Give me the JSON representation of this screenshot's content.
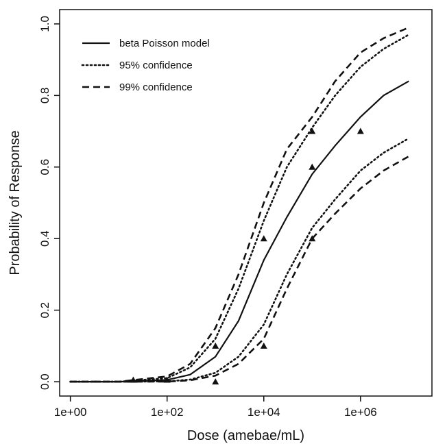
{
  "chart_data": {
    "type": "line",
    "title": "",
    "xlabel": "Dose (amebae/mL)",
    "ylabel": "Probability of Response",
    "x_scale": "log10",
    "xlim": [
      0.6,
      30000000
    ],
    "ylim": [
      -0.04,
      1.04
    ],
    "x_ticks": [
      1,
      100,
      10000,
      1000000
    ],
    "x_tick_labels": [
      "1e+00",
      "1e+02",
      "1e+04",
      "1e+06"
    ],
    "y_ticks": [
      0.0,
      0.2,
      0.4,
      0.6,
      0.8,
      1.0
    ],
    "y_tick_labels": [
      "0.0",
      "0.2",
      "0.4",
      "0.6",
      "0.8",
      "1.0"
    ],
    "grid": false,
    "legend_position": "top-left",
    "series": [
      {
        "name": "beta Poisson model",
        "style": "solid",
        "x": [
          1,
          10,
          100,
          300,
          1000,
          3000,
          10000,
          30000,
          100000,
          300000,
          1000000,
          3000000,
          10000000
        ],
        "y": [
          0.0,
          0.0,
          0.005,
          0.02,
          0.07,
          0.17,
          0.34,
          0.46,
          0.58,
          0.66,
          0.74,
          0.8,
          0.84
        ]
      },
      {
        "name": "95% confidence",
        "style": "dotted",
        "x": [
          1,
          10,
          100,
          300,
          1000,
          3000,
          10000,
          30000,
          100000,
          300000,
          1000000,
          3000000,
          10000000
        ],
        "y": [
          0.0,
          0.0,
          0.01,
          0.04,
          0.12,
          0.26,
          0.45,
          0.6,
          0.71,
          0.8,
          0.88,
          0.93,
          0.97
        ]
      },
      {
        "name": "95% confidence",
        "style": "dotted",
        "x": [
          1,
          10,
          100,
          300,
          1000,
          3000,
          10000,
          30000,
          100000,
          300000,
          1000000,
          3000000,
          10000000
        ],
        "y": [
          0.0,
          0.0,
          0.001,
          0.006,
          0.025,
          0.07,
          0.16,
          0.3,
          0.43,
          0.51,
          0.59,
          0.64,
          0.68
        ]
      },
      {
        "name": "99% confidence",
        "style": "dashed",
        "x": [
          1,
          10,
          100,
          300,
          1000,
          3000,
          10000,
          30000,
          100000,
          300000,
          1000000,
          3000000,
          10000000
        ],
        "y": [
          0.0,
          0.0,
          0.015,
          0.05,
          0.15,
          0.3,
          0.5,
          0.65,
          0.74,
          0.84,
          0.92,
          0.96,
          0.99
        ]
      },
      {
        "name": "99% confidence",
        "style": "dashed",
        "x": [
          1,
          10,
          100,
          300,
          1000,
          3000,
          10000,
          30000,
          100000,
          300000,
          1000000,
          3000000,
          10000000
        ],
        "y": [
          0.0,
          0.0,
          0.0005,
          0.004,
          0.017,
          0.05,
          0.12,
          0.26,
          0.4,
          0.47,
          0.54,
          0.59,
          0.63
        ]
      }
    ],
    "points": {
      "marker": "triangle",
      "x": [
        20,
        100,
        1000,
        1000,
        10000,
        10000,
        100000,
        100000,
        100000,
        1000000
      ],
      "y": [
        0.005,
        0.005,
        0.1,
        0.0,
        0.4,
        0.1,
        0.7,
        0.6,
        0.4,
        0.7
      ]
    },
    "legend": [
      {
        "label": "beta Poisson model",
        "style": "solid"
      },
      {
        "label": "95% confidence",
        "style": "dotted"
      },
      {
        "label": "99% confidence",
        "style": "dashed"
      }
    ]
  }
}
